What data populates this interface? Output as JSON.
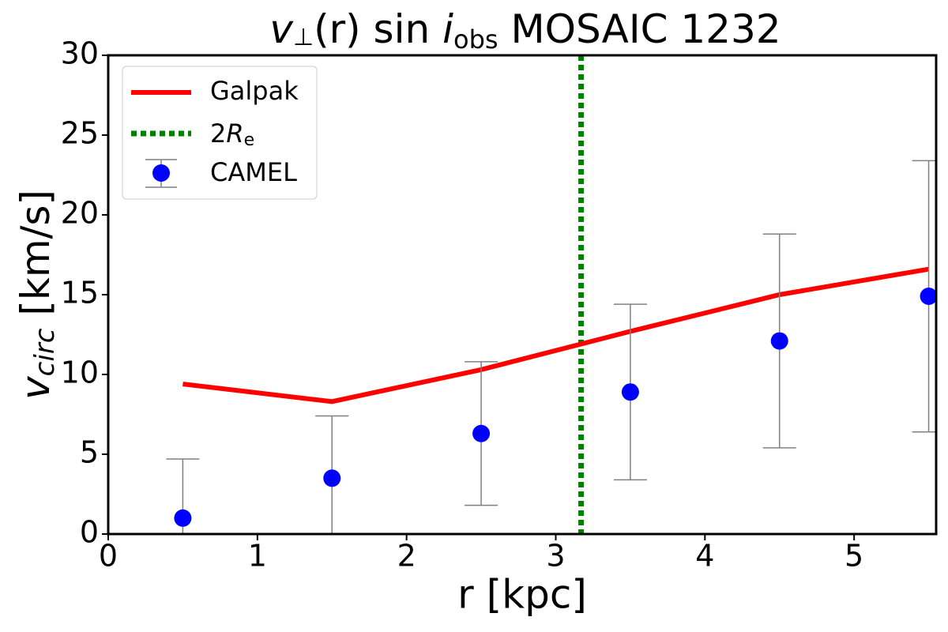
{
  "chart_data": {
    "type": "line",
    "title": [
      "v",
      "⊥",
      "(r) sin ",
      "i",
      "obs",
      " MOSAIC 1232"
    ],
    "xlabel": "r [kpc]",
    "ylabel": [
      "v",
      "circ",
      " [km/s]"
    ],
    "xlim": [
      0,
      5.55
    ],
    "ylim": [
      0,
      30
    ],
    "xticks": [
      0,
      1,
      2,
      3,
      4,
      5
    ],
    "yticks": [
      0,
      5,
      10,
      15,
      20,
      25,
      30
    ],
    "series": [
      {
        "name": "Galpak",
        "color": "#ff0000",
        "x": [
          0.5,
          1.5,
          2.5,
          3.5,
          4.5,
          5.5
        ],
        "values": [
          9.4,
          8.3,
          10.3,
          12.7,
          15.0,
          16.6
        ]
      },
      {
        "name": "CAMEL",
        "color": "#0000ff",
        "error_color": "#808080",
        "x": [
          0.5,
          1.5,
          2.5,
          3.5,
          4.5,
          5.5
        ],
        "values": [
          1.0,
          3.5,
          6.3,
          8.9,
          12.1,
          14.9
        ],
        "errors": [
          3.7,
          3.9,
          4.5,
          5.5,
          6.7,
          8.5
        ]
      }
    ],
    "vline": {
      "name": [
        "2",
        "R",
        "e"
      ],
      "x": 3.17,
      "color": "#008000"
    },
    "legend": "upper left"
  }
}
